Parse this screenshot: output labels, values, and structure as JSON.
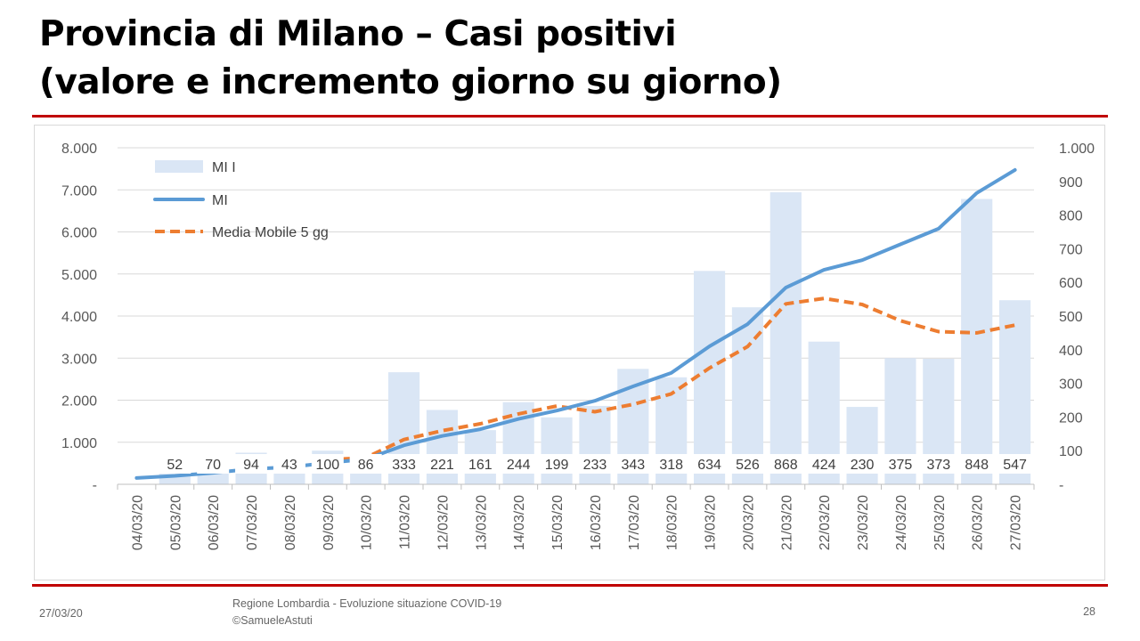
{
  "slide": {
    "title_line1": "Provincia di Milano – Casi positivi",
    "title_line2": "(valore e incremento giorno su giorno)"
  },
  "footer": {
    "date": "27/03/20",
    "source_line1": "Regione Lombardia - Evoluzione situazione COVID-19",
    "source_line2": "©SamueleAstuti",
    "page_number": "28"
  },
  "colors": {
    "bar": "#dae6f5",
    "line": "#5b9bd5",
    "moving_average": "#ed7d31",
    "title_rule": "#c00000",
    "grid": "#d9d9d9",
    "tick_text": "#595959"
  },
  "chart_data": {
    "type": "bar",
    "title": "",
    "categories": [
      "04/03/20",
      "05/03/20",
      "06/03/20",
      "07/03/20",
      "08/03/20",
      "09/03/20",
      "10/03/20",
      "11/03/20",
      "12/03/20",
      "13/03/20",
      "14/03/20",
      "15/03/20",
      "16/03/20",
      "17/03/20",
      "18/03/20",
      "19/03/20",
      "20/03/20",
      "21/03/20",
      "22/03/20",
      "23/03/20",
      "24/03/20",
      "25/03/20",
      "26/03/20",
      "27/03/20"
    ],
    "series": [
      {
        "name": "MI I",
        "type": "bar",
        "axis": "right",
        "values": [
          null,
          52,
          70,
          94,
          43,
          100,
          86,
          333,
          221,
          161,
          244,
          199,
          233,
          343,
          318,
          634,
          526,
          868,
          424,
          230,
          375,
          373,
          848,
          547
        ],
        "data_labels": [
          "",
          "52",
          "70",
          "94",
          "43",
          "100",
          "86",
          "333",
          "221",
          "161",
          "244",
          "199",
          "233",
          "343",
          "318",
          "634",
          "526",
          "868",
          "424",
          "230",
          "375",
          "373",
          "848",
          "547"
        ]
      },
      {
        "name": "MI",
        "type": "line",
        "axis": "left",
        "values": [
          150,
          202,
          272,
          366,
          409,
          509,
          595,
          928,
          1149,
          1310,
          1554,
          1753,
          1986,
          2329,
          2647,
          3281,
          3807,
          4675,
          5099,
          5329,
          5704,
          6077,
          6925,
          7472
        ]
      },
      {
        "name": "Media Mobile 5 gg",
        "type": "line-dashed",
        "axis": "left",
        "values": [
          null,
          null,
          null,
          null,
          null,
          585,
          630,
          1065,
          1275,
          1440,
          1675,
          1860,
          1725,
          1900,
          2150,
          2765,
          3275,
          4290,
          4420,
          4275,
          3890,
          3630,
          3600,
          3785
        ]
      }
    ],
    "y_left": {
      "ticks": [
        "-",
        "1.000",
        "2.000",
        "3.000",
        "4.000",
        "5.000",
        "6.000",
        "7.000",
        "8.000"
      ],
      "ylim": [
        0,
        8000
      ]
    },
    "y_right": {
      "ticks": [
        "-",
        "100",
        "200",
        "300",
        "400",
        "500",
        "600",
        "700",
        "800",
        "900",
        "1.000"
      ],
      "ylim": [
        0,
        1000
      ]
    },
    "grid": true,
    "legend_position": "top-left"
  }
}
